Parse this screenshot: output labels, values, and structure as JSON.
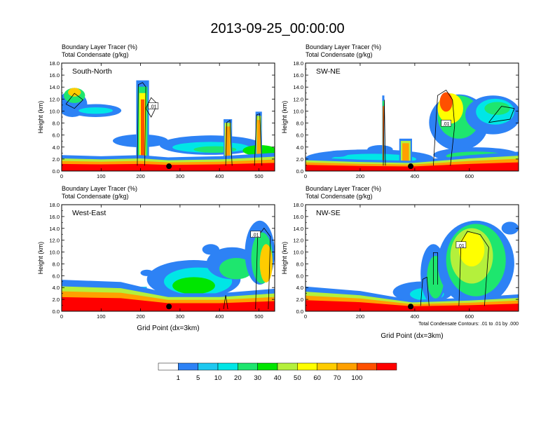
{
  "title": "2013-09-25_00:00:00",
  "panels": [
    {
      "id": "south-north",
      "label": "South-North",
      "xmax": 540,
      "xticks": [
        0,
        100,
        200,
        300,
        400,
        500
      ],
      "show_xlabel": false,
      "footnote": ""
    },
    {
      "id": "sw-ne",
      "label": "SW-NE",
      "xmax": 780,
      "xticks": [
        0,
        200,
        400,
        600
      ],
      "show_xlabel": false,
      "footnote": ""
    },
    {
      "id": "west-east",
      "label": "West-East",
      "xmax": 540,
      "xticks": [
        0,
        100,
        200,
        300,
        400,
        500
      ],
      "show_xlabel": true,
      "footnote": ""
    },
    {
      "id": "nw-se",
      "label": "NW-SE",
      "xmax": 780,
      "xticks": [
        0,
        200,
        400,
        600
      ],
      "show_xlabel": true,
      "footnote": "Total Condensate Contours: .01 to .01 by .000"
    }
  ],
  "shared": {
    "subtitle1": "Boundary Layer Tracer   (%)",
    "subtitle2": "Total Condensate   (g/kg)",
    "ylabel": "Height (km)",
    "xlabel": "Grid Point (dx=3km)",
    "ylim": [
      0,
      18
    ],
    "yticks": [
      "0.0",
      "2.0",
      "4.0",
      "6.0",
      "8.0",
      "10.0",
      "12.0",
      "14.0",
      "16.0",
      "18.0"
    ],
    "contour_label": ".01"
  },
  "chart_data": {
    "type": "heatmap",
    "variable": "Boundary Layer Tracer (%)",
    "contour_variable": "Total Condensate (g/kg)",
    "contour_level": 0.01,
    "colorbar": {
      "colors": [
        "#ffffff",
        "#2d82f5",
        "#1ec8f0",
        "#00e6e6",
        "#1ee66e",
        "#00e600",
        "#b4f03c",
        "#ffff00",
        "#ffcc00",
        "#ffa000",
        "#ff5000",
        "#ff0000"
      ],
      "levels": [
        "1",
        "5",
        "10",
        "20",
        "30",
        "40",
        "50",
        "60",
        "70",
        "100"
      ]
    },
    "bl_depth_km": [
      {
        "panel": "South-North",
        "x": [
          0,
          100,
          200,
          270,
          400,
          540
        ],
        "top_km": [
          1.4,
          1.3,
          1.4,
          1.2,
          1.3,
          1.6
        ]
      },
      {
        "panel": "SW-NE",
        "x": [
          0,
          200,
          390,
          600,
          780
        ],
        "top_km": [
          1.2,
          1.0,
          0.9,
          1.4,
          1.7
        ]
      },
      {
        "panel": "West-East",
        "x": [
          0,
          150,
          270,
          400,
          540
        ],
        "top_km": [
          2.8,
          2.6,
          1.6,
          1.6,
          2.0
        ]
      },
      {
        "panel": "NW-SE",
        "x": [
          0,
          200,
          390,
          600,
          780
        ],
        "top_km": [
          2.2,
          1.8,
          1.0,
          1.2,
          1.5
        ]
      }
    ],
    "site_marker": [
      {
        "panel": "South-North",
        "x": 272,
        "y_km": 0.8
      },
      {
        "panel": "SW-NE",
        "x": 385,
        "y_km": 0.8
      },
      {
        "panel": "West-East",
        "x": 272,
        "y_km": 0.8
      },
      {
        "panel": "NW-SE",
        "x": 385,
        "y_km": 0.8
      }
    ]
  }
}
